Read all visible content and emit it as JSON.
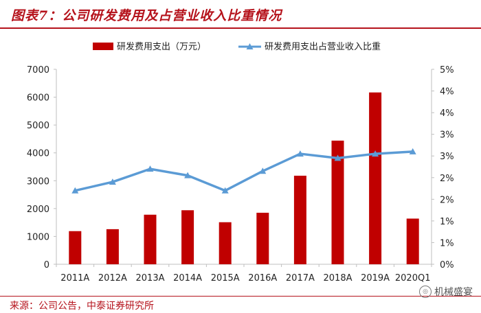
{
  "title": "图表7：公司研发费用及占营业收入比重情况",
  "source": "来源：公司公告，中泰证券研究所",
  "watermark": "机械盛宴",
  "colors": {
    "bar": "#c00000",
    "line": "#5b9bd5",
    "accent": "#b5121b"
  },
  "chart_data": {
    "type": "bar+line",
    "categories": [
      "2011A",
      "2012A",
      "2013A",
      "2014A",
      "2015A",
      "2016A",
      "2017A",
      "2018A",
      "2019A",
      "2020Q1"
    ],
    "series": [
      {
        "name": "研发费用支出（万元）",
        "type": "bar",
        "axis": "left",
        "values": [
          1190,
          1260,
          1780,
          1940,
          1510,
          1850,
          3180,
          4440,
          6170,
          1640
        ]
      },
      {
        "name": "研发费用支出占营业收入比重",
        "type": "line",
        "axis": "right",
        "values": [
          3.4,
          3.8,
          4.4,
          4.1,
          3.4,
          4.3,
          5.1,
          4.9,
          5.1,
          5.2
        ]
      }
    ],
    "left_axis": {
      "ylim": [
        0,
        7000
      ],
      "ticks": [
        "0",
        "1000",
        "2000",
        "3000",
        "4000",
        "5000",
        "6000",
        "7000"
      ]
    },
    "right_axis": {
      "ylim": [
        0,
        9
      ],
      "ticks": [
        "0%",
        "1%",
        "1%",
        "2%",
        "2%",
        "3%",
        "3%",
        "4%",
        "4%",
        "5%"
      ]
    },
    "legend_position": "top"
  }
}
